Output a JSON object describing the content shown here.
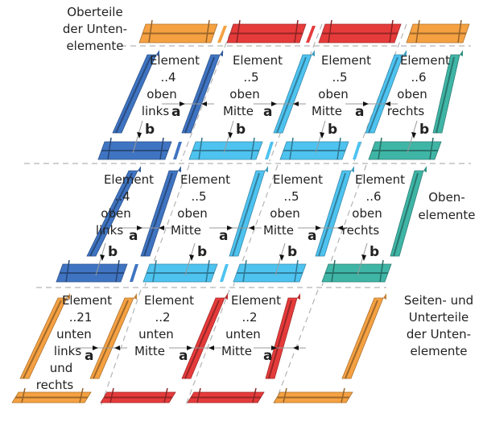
{
  "colors": {
    "blue": "#3f74c2",
    "light_blue": "#4ec3f0",
    "teal": "#3fb5a6",
    "orange": "#f5a142",
    "red": "#e63b3b"
  },
  "top_label": [
    "Oberteile",
    "der Unten-",
    "elemente"
  ],
  "right_label_mid": [
    "Oben-",
    "elemente"
  ],
  "right_label_bottom": [
    "Seiten- und",
    "Unterteile",
    "der Unten-",
    "elemente"
  ],
  "row1": [
    {
      "lines": [
        "Element",
        "..4",
        "oben",
        "links"
      ]
    },
    {
      "lines": [
        "Element",
        "..5",
        "oben",
        "Mitte"
      ]
    },
    {
      "lines": [
        "Element",
        "..5",
        "oben",
        "Mitte"
      ]
    },
    {
      "lines": [
        "Element",
        "..6",
        "oben",
        "rechts"
      ]
    }
  ],
  "row2": [
    {
      "lines": [
        "Element",
        "..4",
        "oben",
        "links"
      ]
    },
    {
      "lines": [
        "Element",
        "..5",
        "oben",
        "Mitte"
      ]
    },
    {
      "lines": [
        "Element",
        "..5",
        "oben",
        "Mitte"
      ]
    },
    {
      "lines": [
        "Element",
        "..6",
        "oben",
        "rechts"
      ]
    }
  ],
  "row3": [
    {
      "lines": [
        "Element",
        "..21",
        "unten",
        "links",
        "und",
        "rechts"
      ]
    },
    {
      "lines": [
        "Element",
        "..2",
        "unten",
        "Mitte"
      ]
    },
    {
      "lines": [
        "Element",
        "..2",
        "unten",
        "Mitte"
      ]
    }
  ],
  "dim_a": "a",
  "dim_b": "b"
}
